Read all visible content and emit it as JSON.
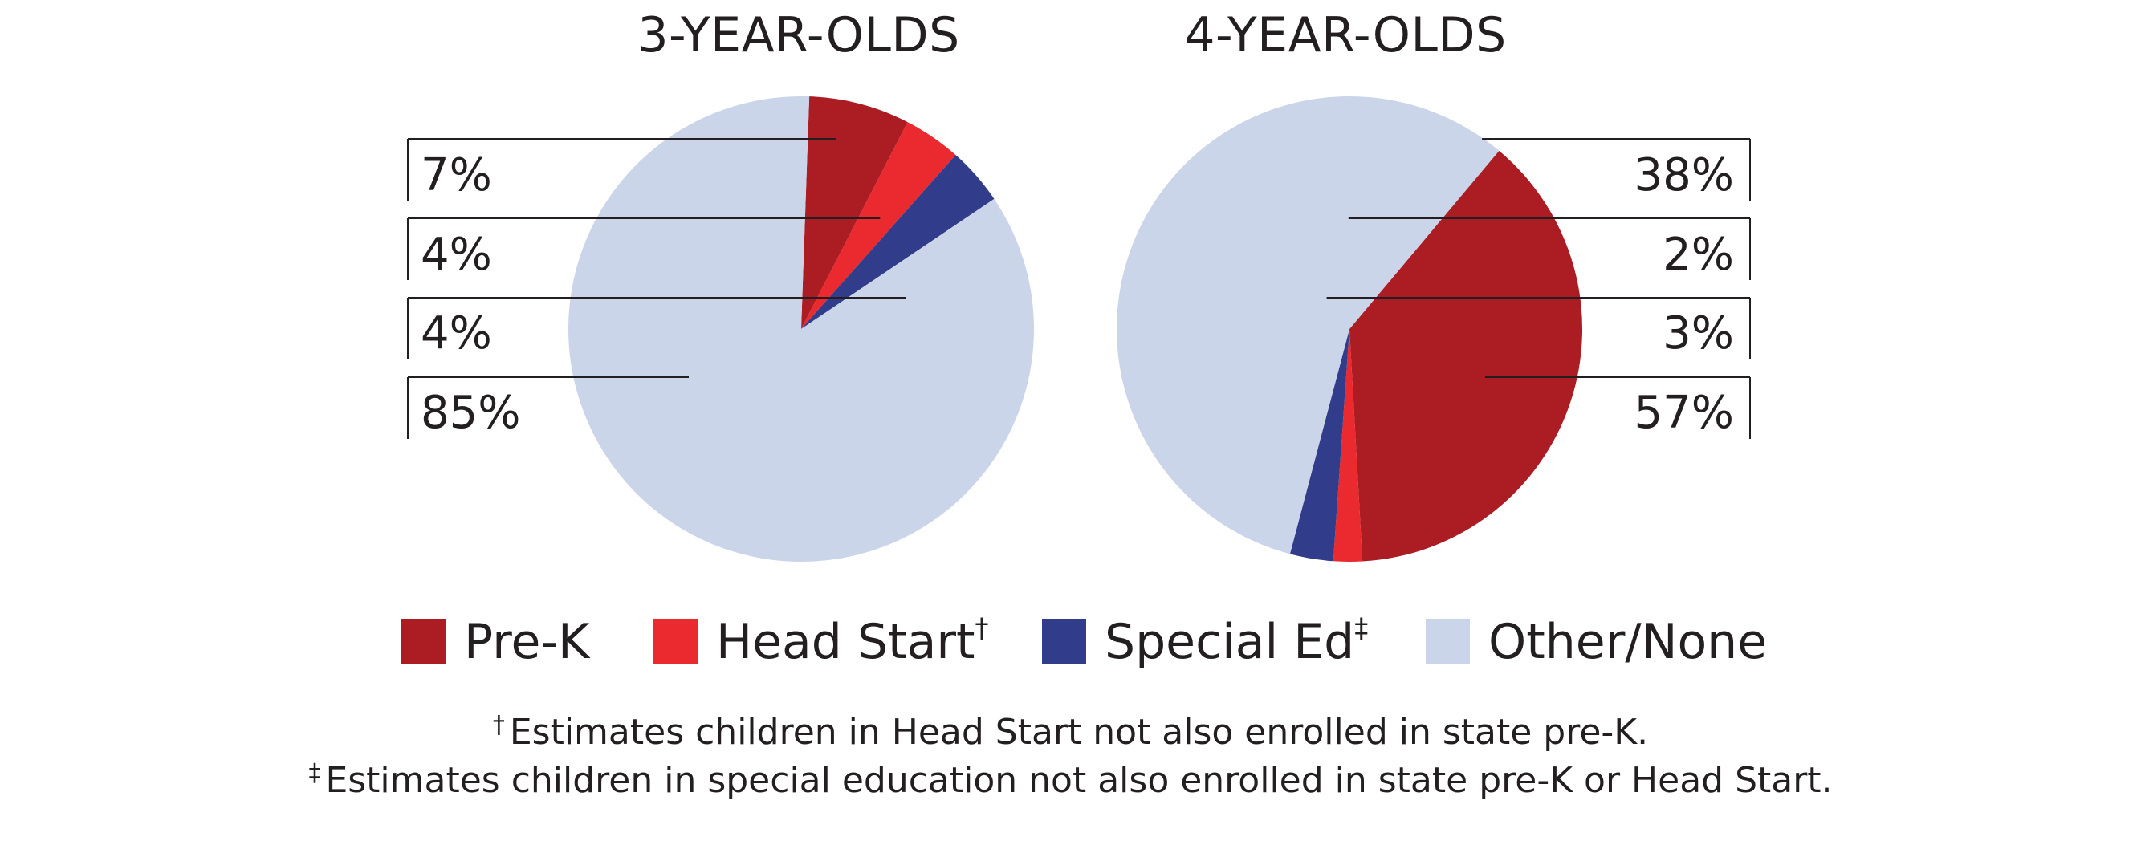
{
  "chart_data": [
    {
      "type": "pie",
      "title": "3-YEAR-OLDS",
      "categories": [
        "Pre-K",
        "Head Start",
        "Special Ed",
        "Other/None"
      ],
      "values": [
        7,
        4,
        4,
        85
      ],
      "value_labels": [
        "7%",
        "4%",
        "4%",
        "85%"
      ],
      "label_side": "left"
    },
    {
      "type": "pie",
      "title": "4-YEAR-OLDS",
      "categories": [
        "Pre-K",
        "Head Start",
        "Special Ed",
        "Other/None"
      ],
      "values": [
        38,
        2,
        3,
        57
      ],
      "value_labels": [
        "38%",
        "2%",
        "3%",
        "57%"
      ],
      "label_side": "right"
    }
  ],
  "colors": {
    "Pre-K": "#ab1c23",
    "Head Start": "#ea2a2e",
    "Special Ed": "#313c8a",
    "Other/None": "#cbd5ea",
    "leader_line": "#231f20"
  },
  "legend": {
    "placement": "bottom",
    "items": [
      {
        "label": "Pre-K",
        "mark": ""
      },
      {
        "label": "Head Start",
        "mark": "†"
      },
      {
        "label": "Special Ed",
        "mark": "‡"
      },
      {
        "label": "Other/None",
        "mark": ""
      }
    ]
  },
  "footnotes": [
    {
      "mark": "†",
      "text": "Estimates children in Head Start not also enrolled in state pre-K."
    },
    {
      "mark": "‡",
      "text": "Estimates children in special education not also enrolled in state pre-K or Head Start."
    }
  ]
}
